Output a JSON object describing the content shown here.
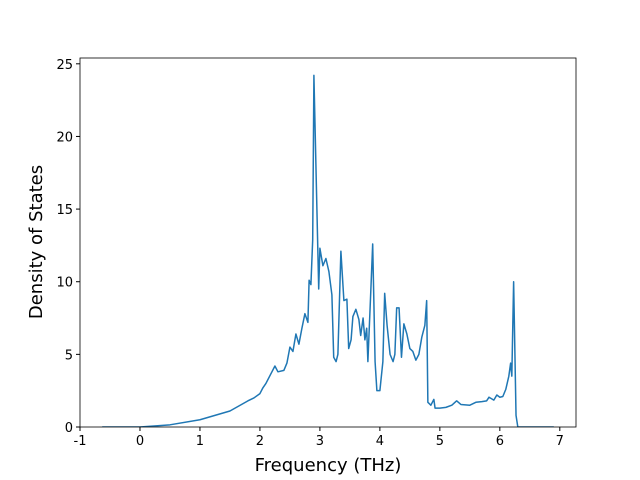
{
  "chart_data": {
    "type": "line",
    "xlabel": "Frequency (THz)",
    "ylabel": "Density of States",
    "x": [
      -0.63,
      0,
      0.5,
      1,
      1.5,
      1.8,
      1.9,
      2.0,
      2.05,
      2.1,
      2.2,
      2.25,
      2.3,
      2.4,
      2.45,
      2.5,
      2.55,
      2.6,
      2.65,
      2.7,
      2.75,
      2.8,
      2.82,
      2.85,
      2.88,
      2.9,
      2.95,
      2.98,
      3.0,
      3.05,
      3.1,
      3.15,
      3.2,
      3.23,
      3.27,
      3.3,
      3.35,
      3.4,
      3.45,
      3.48,
      3.52,
      3.55,
      3.6,
      3.65,
      3.68,
      3.72,
      3.75,
      3.78,
      3.8,
      3.85,
      3.88,
      3.92,
      3.95,
      4.0,
      4.05,
      4.08,
      4.12,
      4.17,
      4.22,
      4.25,
      4.28,
      4.32,
      4.36,
      4.4,
      4.45,
      4.5,
      4.55,
      4.6,
      4.65,
      4.7,
      4.75,
      4.78,
      4.8,
      4.85,
      4.9,
      4.92,
      5.0,
      5.1,
      5.2,
      5.28,
      5.35,
      5.5,
      5.6,
      5.7,
      5.78,
      5.82,
      5.9,
      5.95,
      6.0,
      6.05,
      6.1,
      6.15,
      6.18,
      6.2,
      6.23,
      6.27,
      6.3,
      6.9
    ],
    "series": [
      {
        "name": "DOS",
        "color": "#1f77b4",
        "values": [
          0,
          0,
          0.15,
          0.5,
          1.1,
          1.8,
          2.0,
          2.3,
          2.7,
          3.0,
          3.8,
          4.2,
          3.8,
          3.9,
          4.4,
          5.5,
          5.2,
          6.4,
          5.7,
          6.8,
          7.8,
          7.2,
          10.1,
          9.8,
          12.9,
          24.2,
          15,
          9.5,
          12.3,
          11.1,
          11.6,
          10.7,
          9.1,
          4.8,
          4.5,
          5.0,
          12.1,
          8.7,
          8.8,
          5.4,
          6.0,
          7.6,
          8.1,
          7.4,
          6.3,
          7.5,
          6.0,
          6.8,
          4.5,
          9.5,
          12.6,
          4.5,
          2.5,
          2.5,
          4.5,
          9.2,
          7.0,
          5.0,
          4.5,
          5.0,
          8.2,
          8.2,
          4.8,
          7.1,
          6.4,
          5.4,
          5.2,
          4.6,
          5.0,
          6.2,
          7.0,
          8.7,
          1.7,
          1.5,
          1.9,
          1.3,
          1.3,
          1.35,
          1.5,
          1.8,
          1.55,
          1.5,
          1.7,
          1.75,
          1.8,
          2.05,
          1.85,
          2.2,
          2.05,
          2.1,
          2.6,
          3.5,
          4.4,
          3.5,
          10.0,
          0.8,
          0,
          0
        ]
      }
    ],
    "xlim": [
      -1.0,
      7.27
    ],
    "ylim": [
      0,
      25.4
    ],
    "xticks": [
      -1,
      0,
      1,
      2,
      3,
      4,
      5,
      6,
      7
    ],
    "yticks": [
      0,
      5,
      10,
      15,
      20,
      25
    ]
  }
}
